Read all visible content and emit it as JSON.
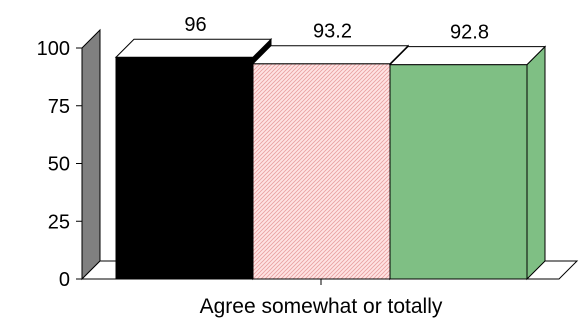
{
  "chart_data": {
    "type": "bar",
    "title": "",
    "xlabel": "",
    "ylabel": "",
    "categories": [
      "Agree somewhat or totally"
    ],
    "series": [
      {
        "values": [
          96
        ],
        "color": "#000000",
        "pattern": "solid"
      },
      {
        "values": [
          93.2
        ],
        "color": "#ffe3e3",
        "pattern": "diagonal-hatch",
        "pattern_color": "#e8a0a0"
      },
      {
        "values": [
          92.8
        ],
        "color": "#7fbf84",
        "pattern": "solid"
      }
    ],
    "data_labels": [
      "96",
      "93.2",
      "92.8"
    ],
    "yticks": [
      "0",
      "25",
      "50",
      "75",
      "100"
    ],
    "ylim": [
      0,
      100
    ],
    "grid": false,
    "legend": "none",
    "style": "3d",
    "colors": {
      "wall": "#808080",
      "edge": "#000000",
      "bar_top": "#ffffff"
    }
  }
}
